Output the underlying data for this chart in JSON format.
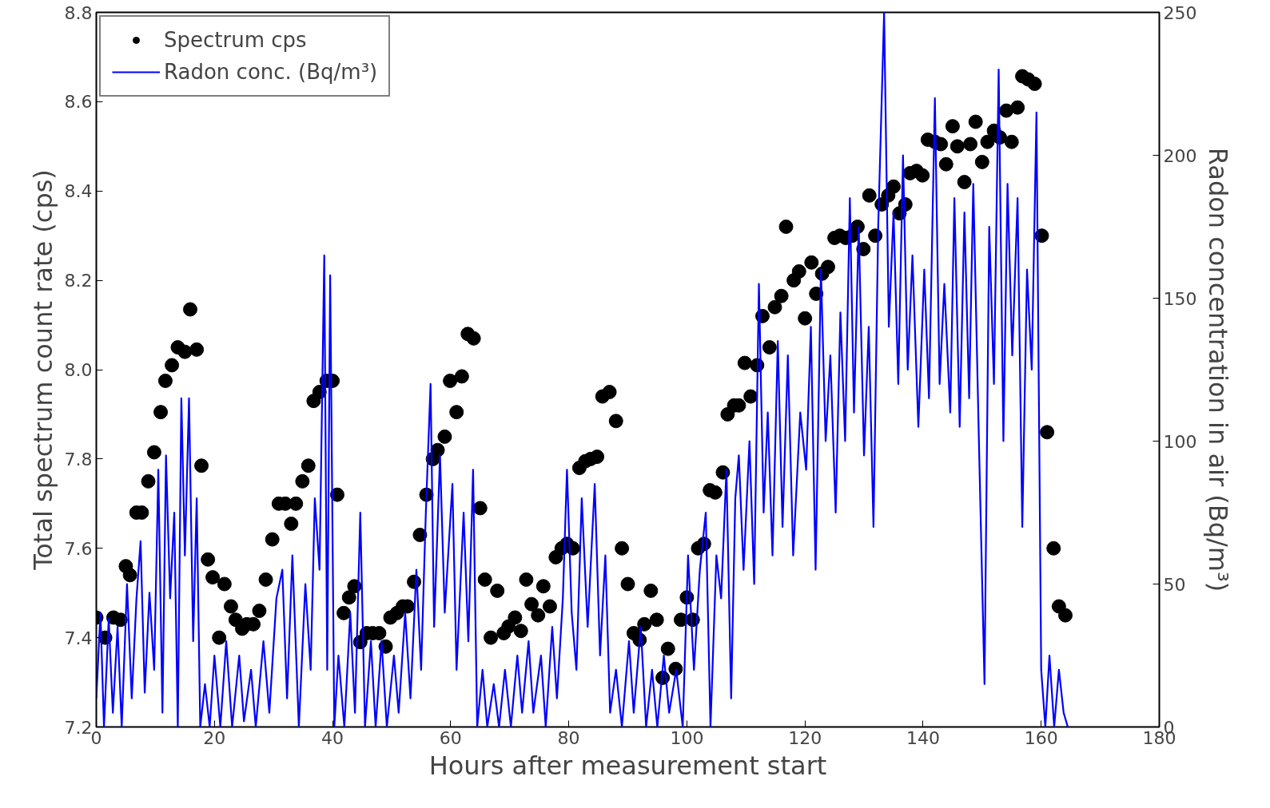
{
  "chart_data": {
    "type": "scatter",
    "xlabel": "Hours after measurement start",
    "ylabel": "Total spectrum count rate (cps)",
    "y2label": "Radon concentration in air (Bq/m³)",
    "xlim": [
      0,
      180
    ],
    "xticks": [
      0,
      20,
      40,
      60,
      80,
      100,
      120,
      140,
      160,
      180
    ],
    "ylim": [
      7.2,
      8.8
    ],
    "yticks": [
      7.2,
      7.4,
      7.6,
      7.8,
      {
        "value": 8,
        "label": "8.0"
      },
      8.2,
      8.4,
      8.6,
      8.8
    ],
    "y2lim": [
      0,
      250
    ],
    "y2ticks": [
      0,
      50,
      100,
      150,
      200,
      250
    ],
    "grid": false,
    "legend": "top left",
    "series": [
      {
        "name": "Spectrum cps",
        "marker": "circle",
        "color": "#000000",
        "x": [
          0,
          1.5,
          2.9,
          4.1,
          5,
          5.7,
          6.8,
          7.7,
          8.8,
          9.8,
          10.9,
          11.7,
          12.8,
          13.8,
          15,
          15.9,
          17,
          17.8,
          18.9,
          19.7,
          20.8,
          21.7,
          22.8,
          23.6,
          24.7,
          25.5,
          26.6,
          27.6,
          28.7,
          29.8,
          30.9,
          32,
          33,
          33.8,
          34.9,
          35.9,
          36.8,
          37.8,
          39,
          40,
          40.8,
          41.9,
          42.8,
          43.7,
          44.7,
          45.8,
          46.8,
          47.9,
          49,
          49.8,
          50.9,
          51.9,
          52.7,
          53.8,
          54.8,
          55.9,
          57,
          57.8,
          59,
          59.9,
          61,
          61.9,
          62.9,
          63.9,
          65,
          65.8,
          66.8,
          67.9,
          69,
          69.8,
          70.9,
          71.9,
          72.8,
          73.7,
          74.8,
          75.7,
          76.8,
          77.8,
          78.8,
          79.7,
          80.7,
          81.8,
          82.8,
          83.7,
          84.8,
          85.7,
          86.9,
          88,
          89,
          90,
          91,
          92,
          92.8,
          93.9,
          94.9,
          95.9,
          96.8,
          98.1,
          99,
          100,
          101,
          101.9,
          102.9,
          103.9,
          104.8,
          106.1,
          106.9,
          108,
          108.8,
          109.8,
          110.8,
          111.9,
          112.8,
          114,
          114.9,
          116,
          116.8,
          118.1,
          119,
          120,
          121.1,
          121.9,
          122.9,
          123.9,
          125,
          125.9,
          126.9,
          128,
          128.9,
          129.9,
          130.9,
          131.9,
          133,
          134.1,
          135,
          136,
          137,
          137.8,
          138.9,
          139.9,
          140.8,
          142,
          143,
          143.9,
          145,
          145.8,
          147,
          148,
          148.9,
          150,
          150.9,
          152,
          153,
          154.1,
          155,
          156,
          156.8,
          157.8,
          158.9,
          160.1,
          161,
          162.1,
          163,
          164.1
        ],
        "values": [
          7.445,
          7.4,
          7.445,
          7.44,
          7.56,
          7.54,
          7.68,
          7.68,
          7.75,
          7.815,
          7.905,
          7.975,
          8.01,
          8.05,
          8.04,
          8.135,
          8.045,
          7.785,
          7.575,
          7.535,
          7.4,
          7.52,
          7.47,
          7.44,
          7.42,
          7.43,
          7.43,
          7.46,
          7.53,
          7.62,
          7.7,
          7.7,
          7.655,
          7.7,
          7.75,
          7.785,
          7.93,
          7.95,
          7.975,
          7.975,
          7.72,
          7.455,
          7.49,
          7.515,
          7.39,
          7.41,
          7.41,
          7.41,
          7.38,
          7.445,
          7.455,
          7.47,
          7.47,
          7.525,
          7.63,
          7.72,
          7.8,
          7.82,
          7.85,
          7.975,
          7.905,
          7.985,
          8.08,
          8.07,
          7.69,
          7.53,
          7.4,
          7.505,
          7.41,
          7.425,
          7.445,
          7.415,
          7.53,
          7.475,
          7.45,
          7.515,
          7.47,
          7.58,
          7.6,
          7.61,
          7.6,
          7.78,
          7.795,
          7.8,
          7.805,
          7.94,
          7.95,
          7.885,
          7.6,
          7.52,
          7.41,
          7.395,
          7.43,
          7.505,
          7.44,
          7.31,
          7.375,
          7.33,
          7.44,
          7.49,
          7.44,
          7.6,
          7.61,
          7.73,
          7.725,
          7.77,
          7.9,
          7.92,
          7.92,
          8.015,
          7.94,
          8.01,
          8.12,
          8.05,
          8.14,
          8.165,
          8.32,
          8.2,
          8.22,
          8.115,
          8.24,
          8.17,
          8.215,
          8.23,
          8.295,
          8.3,
          8.295,
          8.3,
          8.32,
          8.27,
          8.39,
          8.3,
          8.37,
          8.39,
          8.41,
          8.35,
          8.37,
          8.44,
          8.445,
          8.435,
          8.515,
          8.51,
          8.505,
          8.46,
          8.545,
          8.5,
          8.42,
          8.505,
          8.555,
          8.465,
          8.51,
          8.535,
          8.52,
          8.58,
          8.51,
          8.587,
          8.657,
          8.65,
          8.64,
          8.3,
          7.86,
          7.6,
          7.47,
          7.45
        ]
      },
      {
        "name": "Radon conc. (Bq/m³)",
        "type": "line",
        "axis": "y2",
        "color": "#0000ff",
        "x": [
          0,
          0.7,
          1.3,
          2.1,
          2.8,
          3.6,
          4.3,
          5.2,
          6,
          6.8,
          7.5,
          8.2,
          9,
          9.8,
          10.5,
          11.2,
          11.8,
          12.5,
          13.2,
          13.8,
          14.4,
          15,
          15.7,
          16.4,
          17,
          17.6,
          18.4,
          19.2,
          20,
          21,
          22,
          23,
          24.2,
          25,
          26.2,
          27,
          28.3,
          29.3,
          30.5,
          31.5,
          32.3,
          33.2,
          34.3,
          35.4,
          36.3,
          37,
          37.8,
          38.6,
          39.1,
          39.6,
          40.3,
          41,
          42,
          43,
          43.8,
          44.7,
          45.5,
          46.5,
          47.3,
          48.3,
          49.2,
          50.4,
          51.2,
          52.3,
          53.2,
          54.2,
          55,
          55.8,
          56.6,
          57.2,
          58.2,
          59,
          60.3,
          61,
          62.2,
          63,
          63.8,
          64.5,
          65.4,
          66.2,
          67.3,
          68.2,
          69.2,
          70.2,
          71.3,
          72.1,
          73.2,
          74,
          75.3,
          76.1,
          77.2,
          78,
          79,
          79.7,
          80.5,
          81.3,
          82.2,
          83.2,
          84.4,
          85.3,
          86.2,
          87,
          88,
          89,
          90.2,
          91,
          92.2,
          93.1,
          94.1,
          95,
          96.1,
          97,
          98.2,
          99.3,
          100.2,
          101.2,
          102.2,
          103.2,
          104,
          105,
          105.8,
          106.7,
          107.5,
          108.2,
          108.8,
          109.6,
          110.6,
          111.4,
          112.2,
          113,
          113.7,
          114.5,
          115.4,
          116.2,
          117.1,
          118,
          119.2,
          120.2,
          121,
          121.8,
          122.7,
          123.5,
          124.3,
          125.2,
          126,
          126.8,
          127.6,
          128.3,
          129.1,
          130,
          130.8,
          131.6,
          132.4,
          133.4,
          134.2,
          135,
          135.8,
          136.6,
          137.4,
          138.2,
          139.2,
          140.2,
          141,
          142,
          142.8,
          143.6,
          144.6,
          145.3,
          146.2,
          147,
          147.8,
          148.5,
          149.4,
          150.4,
          151.2,
          152,
          152.8,
          153.6,
          154.3,
          155.1,
          156,
          156.8,
          157.6,
          158.4,
          159.2,
          160,
          160.7,
          161.4,
          162.2,
          163,
          163.8,
          164.5
        ],
        "values": [
          10,
          40,
          0,
          38,
          5,
          35,
          0,
          50,
          10,
          45,
          65,
          12,
          47,
          20,
          90,
          5,
          95,
          45,
          75,
          0,
          115,
          60,
          115,
          30,
          80,
          0,
          15,
          0,
          25,
          0,
          30,
          0,
          25,
          2,
          20,
          0,
          30,
          5,
          45,
          55,
          10,
          60,
          0,
          50,
          20,
          80,
          55,
          165,
          20,
          158,
          0,
          25,
          0,
          40,
          5,
          75,
          0,
          30,
          0,
          30,
          0,
          25,
          5,
          40,
          10,
          55,
          20,
          75,
          120,
          35,
          95,
          40,
          85,
          20,
          75,
          30,
          90,
          0,
          20,
          0,
          15,
          0,
          20,
          0,
          25,
          5,
          30,
          5,
          25,
          0,
          35,
          10,
          45,
          90,
          40,
          20,
          80,
          35,
          85,
          25,
          60,
          5,
          20,
          0,
          30,
          5,
          35,
          0,
          20,
          0,
          25,
          5,
          20,
          0,
          60,
          20,
          55,
          75,
          0,
          60,
          45,
          90,
          10,
          80,
          95,
          55,
          100,
          50,
          155,
          75,
          110,
          60,
          135,
          70,
          130,
          60,
          110,
          90,
          140,
          55,
          160,
          100,
          130,
          75,
          145,
          100,
          185,
          110,
          175,
          95,
          140,
          70,
          175,
          250,
          140,
          180,
          120,
          200,
          125,
          165,
          105,
          160,
          115,
          220,
          120,
          155,
          110,
          185,
          105,
          180,
          115,
          190,
          105,
          15,
          175,
          120,
          230,
          100,
          190,
          130,
          185,
          70,
          160,
          125,
          215,
          20,
          0,
          25,
          0,
          20,
          5,
          0
        ]
      }
    ]
  }
}
